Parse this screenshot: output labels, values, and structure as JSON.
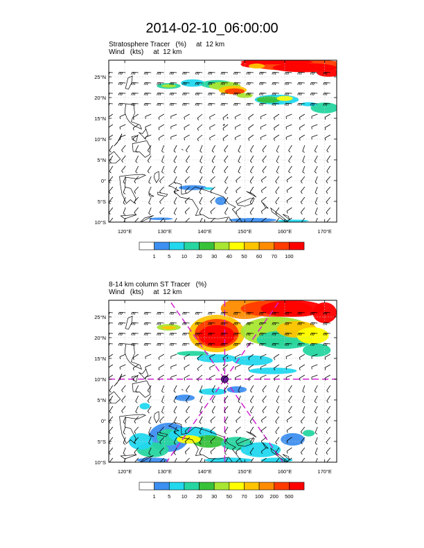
{
  "title": "2014-02-10_06:00:00",
  "panels": [
    {
      "var_label": "Stratosphere Tracer",
      "var_unit": "(%)",
      "var_level": "at  12 km",
      "wind_label": "Wind",
      "wind_unit": "(kts)",
      "wind_level": "at  12 km",
      "colorbar_levels": [
        "1",
        "5",
        "10",
        "20",
        "30",
        "40",
        "50",
        "60",
        "70",
        "100"
      ],
      "colorbar_colors": [
        "#ffffff",
        "#3d8ff0",
        "#22d8ef",
        "#26d6a0",
        "#37c23a",
        "#a8e632",
        "#ffff00",
        "#ffc400",
        "#ff8c00",
        "#ff3b00",
        "#ff0000"
      ]
    },
    {
      "var_label": "8-14 km column ST Tracer",
      "var_unit": "(%)",
      "var_level": "",
      "wind_label": "Wind",
      "wind_unit": "(kts)",
      "wind_level": "at  12 km",
      "colorbar_levels": [
        "1",
        "5",
        "10",
        "20",
        "30",
        "50",
        "70",
        "100",
        "200",
        "500"
      ],
      "colorbar_colors": [
        "#ffffff",
        "#3d8ff0",
        "#22d8ef",
        "#26d6a0",
        "#37c23a",
        "#a8e632",
        "#ffff00",
        "#ffc400",
        "#ff8c00",
        "#ff3b00",
        "#ff0000"
      ]
    }
  ],
  "axes": {
    "lon_ticks": [
      "120°E",
      "130°E",
      "140°E",
      "150°E",
      "160°E",
      "170°E"
    ],
    "lat_ticks": [
      "25°N",
      "20°N",
      "15°N",
      "10°N",
      "5°N",
      "0°",
      "5°S",
      "10°S"
    ],
    "lon_range": [
      116,
      173
    ],
    "lat_range": [
      -10,
      29
    ]
  },
  "storm_center": {
    "lon": 145,
    "lat": 10
  },
  "colors": {
    "land_outline": "#000000",
    "grid": "#c8c8c8",
    "storm_lines": "#d020d0"
  }
}
